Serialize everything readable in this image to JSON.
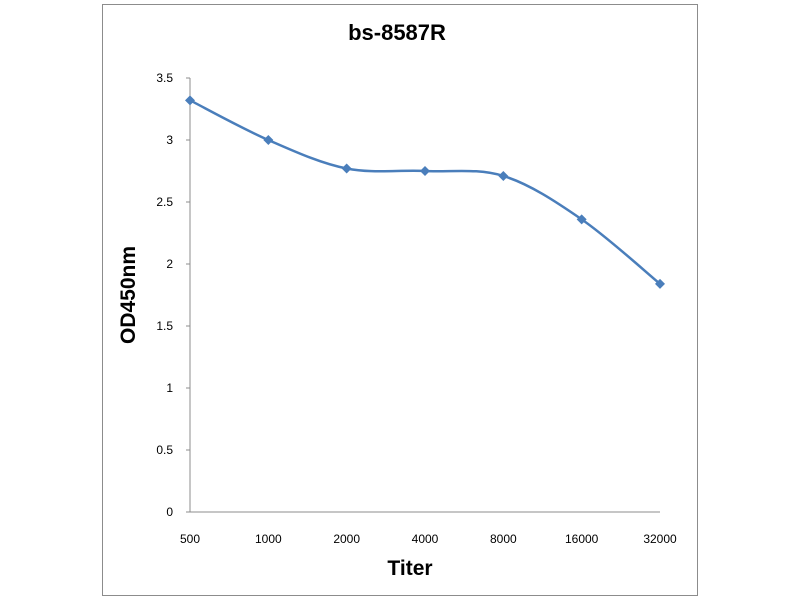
{
  "chart_data": {
    "type": "line",
    "title": "bs-8587R",
    "xlabel": "Titer",
    "ylabel": "OD450nm",
    "categories": [
      "500",
      "1000",
      "2000",
      "4000",
      "8000",
      "16000",
      "32000"
    ],
    "series": [
      {
        "values": [
          3.32,
          3.0,
          2.77,
          2.75,
          2.71,
          2.36,
          1.84
        ]
      }
    ],
    "ylim": [
      0,
      3.5
    ],
    "yticks": [
      "0",
      "0.5",
      "1",
      "1.5",
      "2",
      "2.5",
      "3",
      "3.5"
    ],
    "grid": false,
    "legend": "none",
    "line_color": "#4a7ebb",
    "marker": "diamond"
  }
}
